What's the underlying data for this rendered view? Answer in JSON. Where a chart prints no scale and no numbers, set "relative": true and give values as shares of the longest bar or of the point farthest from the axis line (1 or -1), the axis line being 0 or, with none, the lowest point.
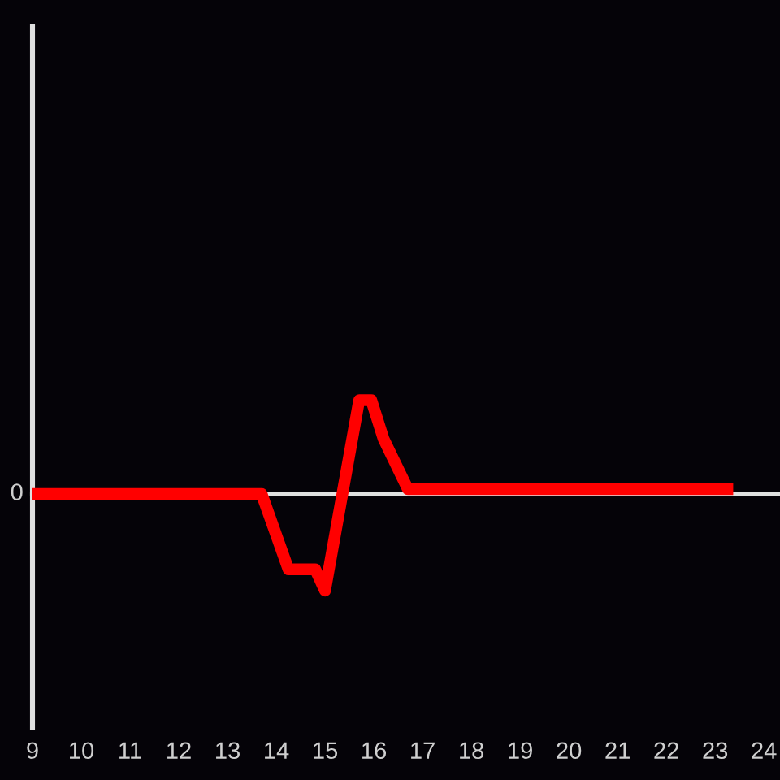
{
  "chart_data": {
    "type": "line",
    "relative": true,
    "x": [
      9,
      13.7,
      14.25,
      14.8,
      15.0,
      15.7,
      15.95,
      16.2,
      16.7,
      23.25
    ],
    "series": [
      {
        "color": "#ff0000",
        "values": [
          0,
          0,
          -0.78,
          -0.78,
          -1,
          0.97,
          0.97,
          0.57,
          0.05,
          0.05
        ]
      }
    ],
    "xlim": [
      9,
      24.33
    ],
    "xticks": [
      9,
      10,
      11,
      12,
      13,
      14,
      15,
      16,
      17,
      18,
      19,
      20,
      21,
      22,
      23,
      24
    ],
    "ref_lines": [
      {
        "axis": "y",
        "value": 0,
        "label": "0",
        "color": "#e0e0e0",
        "line_style": "solid"
      }
    ],
    "line_style": "solid"
  }
}
